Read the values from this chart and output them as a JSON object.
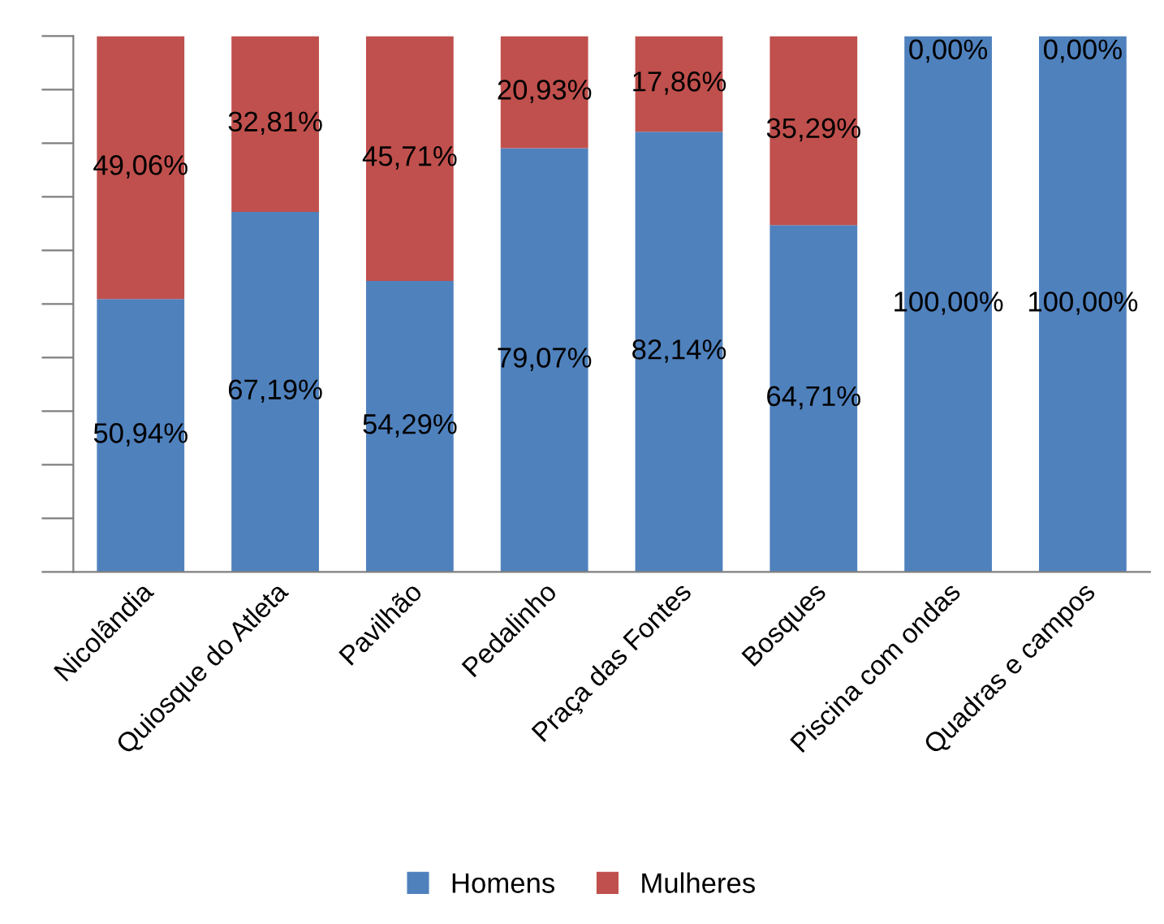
{
  "chart_data": {
    "type": "bar",
    "stacked": true,
    "categories": [
      "Nicolândia",
      "Quiosque do Atleta",
      "Pavilhão",
      "Pedalinho",
      "Praça das Fontes",
      "Bosques",
      "Piscina com ondas",
      "Quadras e campos"
    ],
    "series": [
      {
        "name": "Homens",
        "color": "#4f81bd",
        "values": [
          50.94,
          67.19,
          54.29,
          79.07,
          82.14,
          64.71,
          100,
          100
        ],
        "value_labels": [
          "50,94%",
          "67,19%",
          "54,29%",
          "79,07%",
          "82,14%",
          "64,71%",
          "100,00%",
          "100,00%"
        ]
      },
      {
        "name": "Mulheres",
        "color": "#c0504d",
        "values": [
          49.06,
          32.81,
          45.71,
          20.93,
          17.86,
          35.29,
          0,
          0
        ],
        "value_labels": [
          "49,06%",
          "32,81%",
          "45,71%",
          "20,93%",
          "17,86%",
          "35,29%",
          "0,00%",
          "0,00%"
        ]
      }
    ],
    "ylim": [
      0,
      100
    ],
    "tick_labels": "x",
    "grid": false,
    "legend": "bottom"
  }
}
